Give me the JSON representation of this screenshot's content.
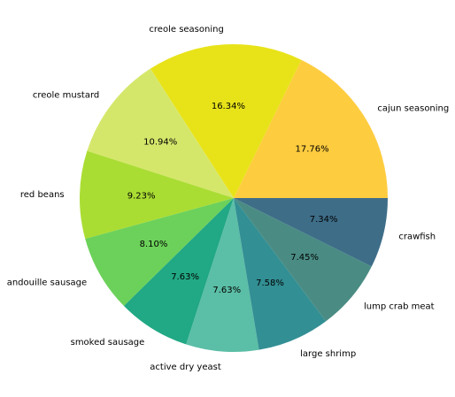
{
  "chart_data": {
    "type": "pie",
    "title": "",
    "slices": [
      {
        "label": "cajun seasoning",
        "value": 17.76,
        "pct_label": "17.76%",
        "color": "#FECC3F"
      },
      {
        "label": "creole seasoning",
        "value": 16.34,
        "pct_label": "16.34%",
        "color": "#E8E319"
      },
      {
        "label": "creole mustard",
        "value": 10.94,
        "pct_label": "10.94%",
        "color": "#D5E76B"
      },
      {
        "label": "red beans",
        "value": 9.23,
        "pct_label": "9.23%",
        "color": "#AADD33"
      },
      {
        "label": "andouille sausage",
        "value": 8.1,
        "pct_label": "8.10%",
        "color": "#6CD15A"
      },
      {
        "label": "smoked sausage",
        "value": 7.63,
        "pct_label": "7.63%",
        "color": "#21A884"
      },
      {
        "label": "active dry yeast",
        "value": 7.63,
        "pct_label": "7.63%",
        "color": "#5BBEA6"
      },
      {
        "label": "large shrimp",
        "value": 7.58,
        "pct_label": "7.58%",
        "color": "#328F94"
      },
      {
        "label": "lump crab meat",
        "value": 7.45,
        "pct_label": "7.45%",
        "color": "#4A8C84"
      },
      {
        "label": "crawfish",
        "value": 7.34,
        "pct_label": "7.34%",
        "color": "#3E6D88"
      }
    ],
    "start_angle_deg": 0,
    "direction": "counterclockwise",
    "legend": "none"
  }
}
